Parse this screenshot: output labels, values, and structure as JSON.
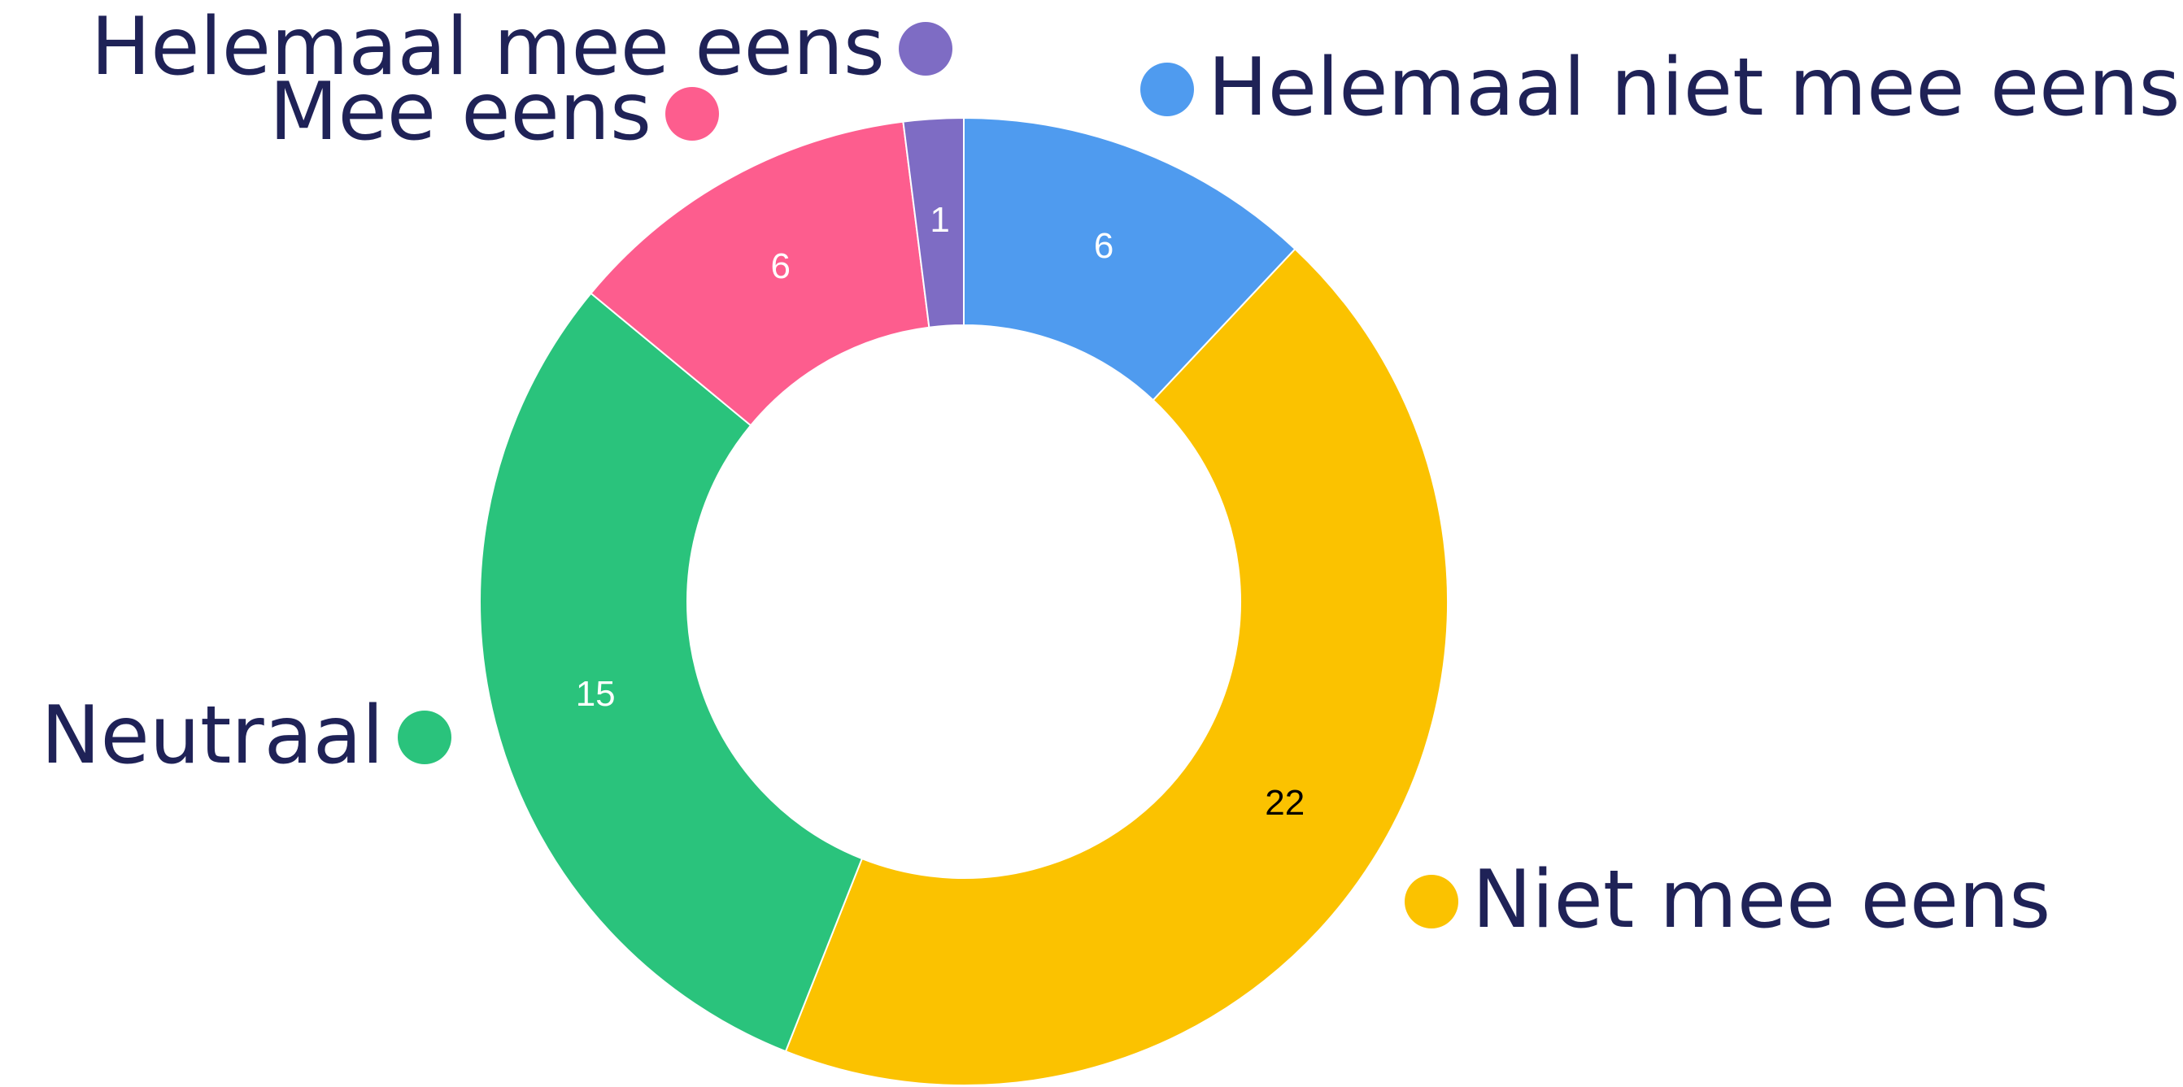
{
  "chart_data": {
    "type": "donut",
    "categories": [
      "Helemaal niet mee eens",
      "Niet mee eens",
      "Neutraal",
      "Mee eens",
      "Helemaal mee eens"
    ],
    "values": [
      6,
      22,
      15,
      6,
      1
    ],
    "colors": [
      "#4f9bef",
      "#fbc200",
      "#2ac37c",
      "#fd5d8e",
      "#7e6cc4"
    ]
  }
}
